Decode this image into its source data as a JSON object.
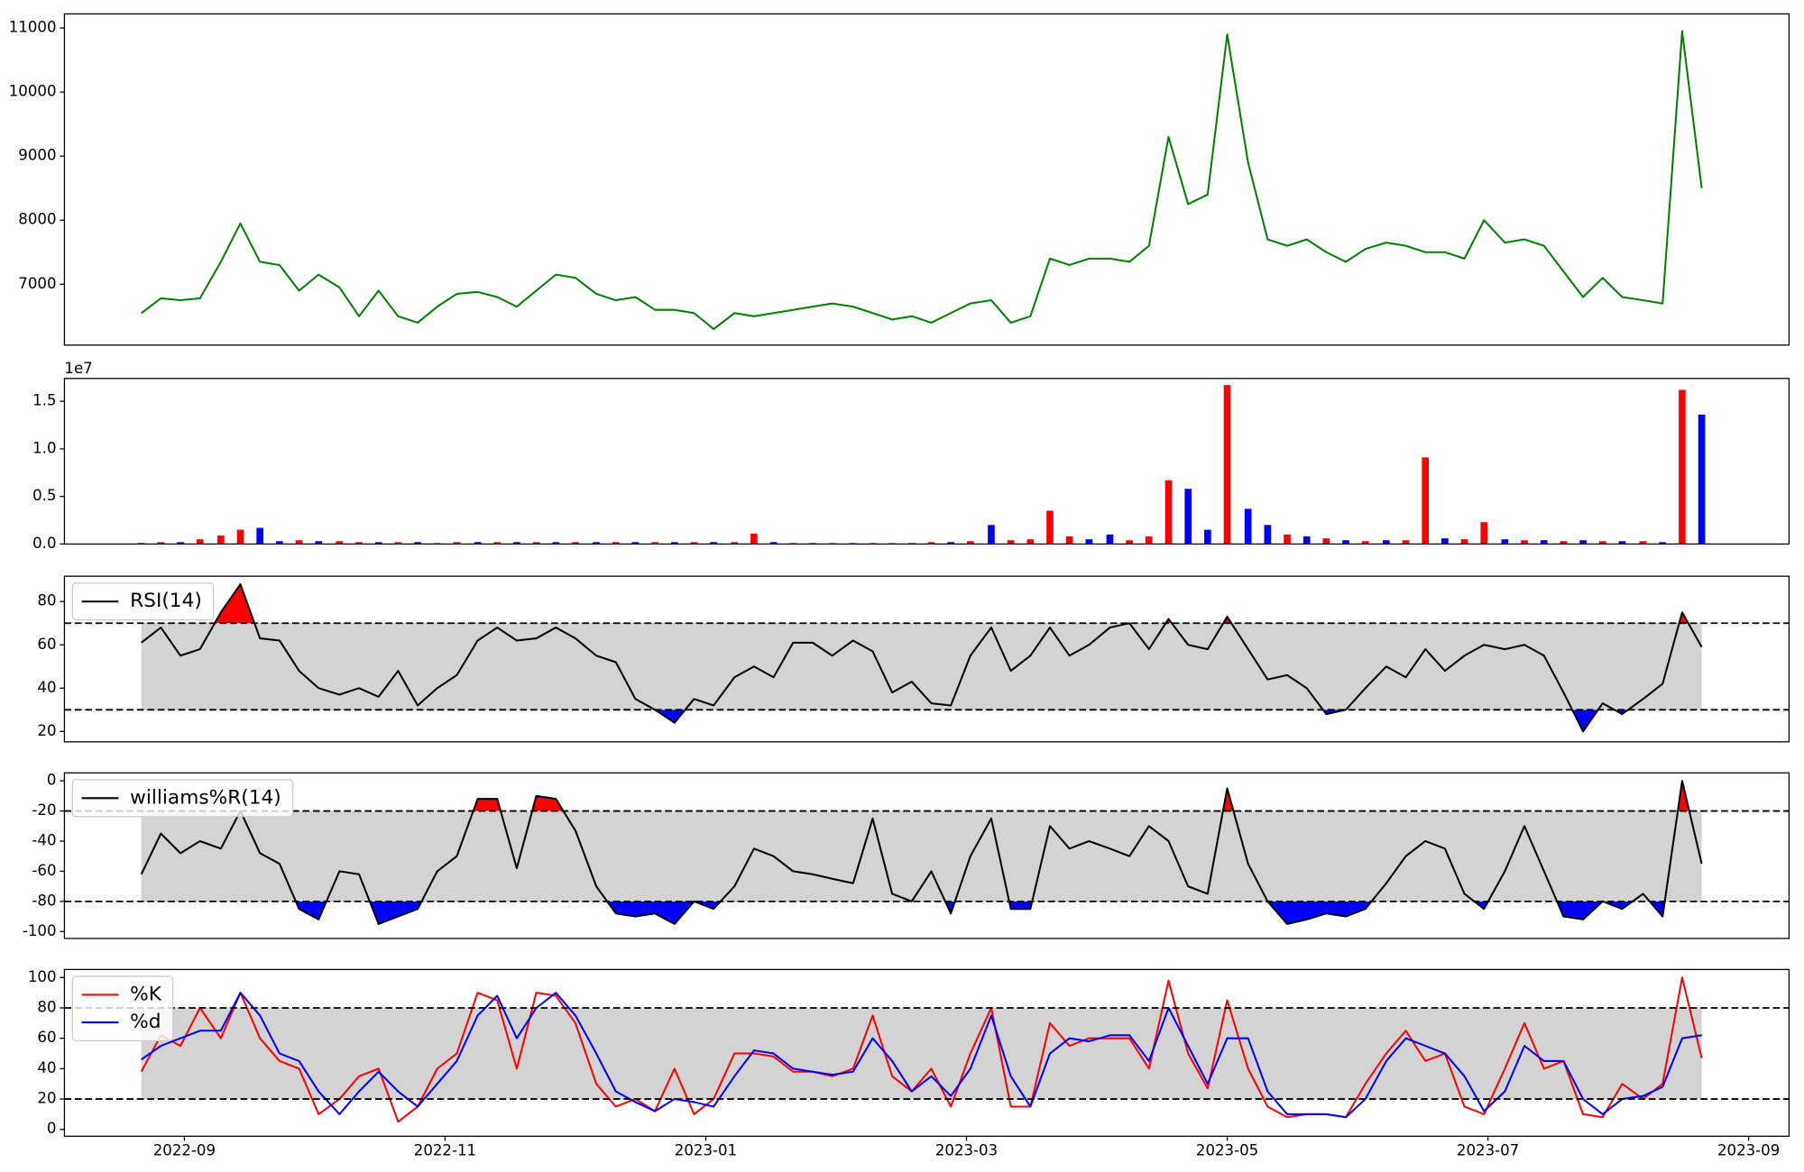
{
  "chart_data": [
    {
      "type": "line",
      "x": [
        8.67,
        8.82,
        8.97,
        9.12,
        9.28,
        9.43,
        9.58,
        9.73,
        9.88,
        10.03,
        10.19,
        10.34,
        10.49,
        10.64,
        10.79,
        10.94,
        11.09,
        11.25,
        11.4,
        11.55,
        11.7,
        11.85,
        12.0,
        12.16,
        12.31,
        12.46,
        12.61,
        12.76,
        12.91,
        13.06,
        13.22,
        13.37,
        13.52,
        13.67,
        13.82,
        13.97,
        14.13,
        14.28,
        14.43,
        14.58,
        14.73,
        14.88,
        15.03,
        15.19,
        15.34,
        15.49,
        15.64,
        15.79,
        15.94,
        16.1,
        16.25,
        16.4,
        16.55,
        16.7,
        16.85,
        17.0,
        17.16,
        17.31,
        17.46,
        17.61,
        17.76,
        17.91,
        18.06,
        18.22,
        18.37,
        18.52,
        18.67,
        18.82,
        18.97,
        19.13,
        19.28,
        19.43,
        19.58,
        19.73,
        19.88,
        20.03,
        20.19,
        20.34,
        20.49,
        20.64
      ],
      "xlim": [
        8.08,
        21.31
      ],
      "ylim": [
        6050,
        11220
      ],
      "yticks": [
        7000,
        8000,
        9000,
        10000,
        11000
      ],
      "series": [
        {
          "color": "green",
          "values": [
            6550,
            6780,
            6750,
            6780,
            7350,
            7950,
            7350,
            7300,
            6900,
            7150,
            6950,
            6500,
            6900,
            6500,
            6400,
            6650,
            6850,
            6880,
            6800,
            6650,
            6900,
            7150,
            7100,
            6850,
            6750,
            6800,
            6600,
            6600,
            6550,
            6300,
            6550,
            6500,
            6550,
            6600,
            6650,
            6700,
            6650,
            6550,
            6450,
            6500,
            6400,
            6550,
            6700,
            6750,
            6400,
            6500,
            7400,
            7300,
            7400,
            7400,
            7350,
            7600,
            9300,
            8250,
            8400,
            10900,
            8900,
            7700,
            7600,
            7700,
            7500,
            7350,
            7550,
            7650,
            7600,
            7500,
            7500,
            7400,
            8000,
            7650,
            7700,
            7600,
            7200,
            6800,
            7100,
            6800,
            6750,
            6700,
            10950,
            8500
          ]
        }
      ]
    },
    {
      "type": "bar",
      "offset_label": "1e7",
      "ylim": [
        0,
        1.74
      ],
      "yticks": [
        {
          "value": 0,
          "label": "0.0"
        },
        0.5,
        {
          "value": 1,
          "label": "1.0"
        },
        1.5
      ],
      "values": [
        0.01,
        0.02,
        0.02,
        0.05,
        0.09,
        0.15,
        0.17,
        0.03,
        0.04,
        0.03,
        0.03,
        0.02,
        0.02,
        0.02,
        0.02,
        0.01,
        0.02,
        0.02,
        0.02,
        0.02,
        0.02,
        0.02,
        0.02,
        0.02,
        0.02,
        0.02,
        0.02,
        0.02,
        0.02,
        0.02,
        0.02,
        0.11,
        0.02,
        0.01,
        0.01,
        0.01,
        0.01,
        0.01,
        0.01,
        0.01,
        0.02,
        0.02,
        0.03,
        0.2,
        0.04,
        0.05,
        0.35,
        0.08,
        0.05,
        0.1,
        0.04,
        0.08,
        0.67,
        0.58,
        0.15,
        1.67,
        0.37,
        0.2,
        0.1,
        0.08,
        0.06,
        0.04,
        0.03,
        0.04,
        0.04,
        0.91,
        0.06,
        0.05,
        0.23,
        0.05,
        0.04,
        0.04,
        0.03,
        0.04,
        0.03,
        0.03,
        0.03,
        0.02,
        1.62,
        1.36
      ],
      "colors": [
        "blue",
        "red",
        "blue",
        "red",
        "red",
        "red",
        "blue",
        "blue",
        "red",
        "blue",
        "red",
        "red",
        "blue",
        "red",
        "blue",
        "red",
        "red",
        "blue",
        "red",
        "blue",
        "red",
        "blue",
        "red",
        "blue",
        "red",
        "blue",
        "red",
        "blue",
        "red",
        "blue",
        "red",
        "red",
        "blue",
        "red",
        "blue",
        "red",
        "blue",
        "red",
        "red",
        "blue",
        "red",
        "blue",
        "red",
        "blue",
        "red",
        "red",
        "red",
        "red",
        "blue",
        "blue",
        "red",
        "red",
        "red",
        "blue",
        "blue",
        "red",
        "blue",
        "blue",
        "red",
        "blue",
        "red",
        "blue",
        "red",
        "blue",
        "red",
        "red",
        "blue",
        "red",
        "red",
        "blue",
        "red",
        "blue",
        "red",
        "blue",
        "red",
        "blue",
        "red",
        "blue",
        "red",
        "blue"
      ]
    },
    {
      "type": "line",
      "legend": "upper left",
      "ylim": [
        15.2,
        91.7
      ],
      "yticks": [
        20,
        40,
        60,
        80
      ],
      "thresholds": [
        30,
        70
      ],
      "band_color": "lightgray",
      "fill_above": "red",
      "fill_below": "blue",
      "series": [
        {
          "name": "RSI(14)",
          "color": "black",
          "values": [
            61,
            68,
            55,
            58,
            75,
            88,
            63,
            62,
            48,
            40,
            37,
            40,
            36,
            48,
            32,
            40,
            46,
            62,
            68,
            62,
            63,
            68,
            63,
            55,
            52,
            35,
            30,
            24,
            35,
            32,
            45,
            50,
            45,
            61,
            61,
            55,
            62,
            57,
            38,
            43,
            33,
            32,
            55,
            68,
            48,
            55,
            68,
            55,
            60,
            68,
            70,
            58,
            72,
            60,
            58,
            73,
            58,
            44,
            46,
            40,
            28,
            30,
            40,
            50,
            45,
            58,
            48,
            55,
            60,
            58,
            60,
            55,
            38,
            20,
            33,
            28,
            35,
            42,
            75,
            59
          ]
        }
      ]
    },
    {
      "type": "line",
      "legend": "upper left",
      "ylim": [
        -104.6,
        5.3
      ],
      "yticks": [
        -100,
        -80,
        -60,
        -40,
        -20,
        0
      ],
      "thresholds": [
        -80,
        -20
      ],
      "band_color": "lightgray",
      "fill_above": "red",
      "fill_below": "blue",
      "series": [
        {
          "name": "williams%R(14)",
          "color": "black",
          "values": [
            -62,
            -35,
            -48,
            -40,
            -45,
            -20,
            -48,
            -55,
            -85,
            -92,
            -60,
            -62,
            -95,
            -90,
            -85,
            -60,
            -50,
            -12,
            -12,
            -58,
            -10,
            -12,
            -33,
            -70,
            -88,
            -90,
            -88,
            -95,
            -80,
            -85,
            -70,
            -45,
            -50,
            -60,
            -62,
            -65,
            -68,
            -25,
            -75,
            -80,
            -60,
            -88,
            -50,
            -25,
            -85,
            -85,
            -30,
            -45,
            -40,
            -45,
            -50,
            -30,
            -40,
            -70,
            -75,
            -5,
            -55,
            -80,
            -95,
            -92,
            -88,
            -90,
            -85,
            -68,
            -50,
            -40,
            -45,
            -75,
            -85,
            -60,
            -30,
            -60,
            -90,
            -92,
            -80,
            -85,
            -75,
            -90,
            0,
            -55
          ]
        }
      ]
    },
    {
      "type": "line",
      "legend": "upper left",
      "ylim": [
        -4.5,
        105.3
      ],
      "yticks": [
        0,
        20,
        40,
        60,
        80,
        100
      ],
      "thresholds": [
        20,
        80
      ],
      "band_color": "lightgray",
      "xticks": [
        {
          "value": 9,
          "label": "2022-09"
        },
        {
          "value": 11,
          "label": "2022-11"
        },
        {
          "value": 13,
          "label": "2023-01"
        },
        {
          "value": 15,
          "label": "2023-03"
        },
        {
          "value": 17,
          "label": "2023-05"
        },
        {
          "value": 19,
          "label": "2023-07"
        },
        {
          "value": 21,
          "label": "2023-09"
        }
      ],
      "series": [
        {
          "name": "%K",
          "color": "red",
          "values": [
            38,
            62,
            55,
            80,
            60,
            90,
            60,
            45,
            40,
            10,
            20,
            35,
            40,
            5,
            15,
            40,
            50,
            90,
            85,
            40,
            90,
            88,
            70,
            30,
            15,
            20,
            12,
            40,
            10,
            20,
            50,
            50,
            48,
            38,
            38,
            35,
            40,
            75,
            35,
            25,
            40,
            15,
            50,
            80,
            15,
            15,
            70,
            55,
            60,
            60,
            60,
            40,
            98,
            50,
            27,
            85,
            40,
            15,
            8,
            10,
            10,
            8,
            30,
            50,
            65,
            45,
            50,
            15,
            10,
            40,
            70,
            40,
            45,
            10,
            8,
            30,
            20,
            30,
            100,
            47
          ]
        },
        {
          "name": "%d",
          "color": "blue",
          "values": [
            46,
            55,
            60,
            65,
            65,
            90,
            75,
            50,
            45,
            25,
            10,
            25,
            38,
            25,
            15,
            30,
            45,
            75,
            88,
            60,
            80,
            90,
            75,
            50,
            25,
            18,
            12,
            20,
            18,
            15,
            35,
            52,
            50,
            40,
            38,
            36,
            38,
            60,
            45,
            25,
            35,
            22,
            40,
            75,
            35,
            15,
            50,
            60,
            58,
            62,
            62,
            45,
            80,
            55,
            30,
            60,
            60,
            25,
            10,
            10,
            10,
            8,
            20,
            45,
            60,
            55,
            50,
            35,
            12,
            25,
            55,
            45,
            45,
            20,
            10,
            20,
            22,
            28,
            60,
            62
          ]
        }
      ]
    }
  ]
}
